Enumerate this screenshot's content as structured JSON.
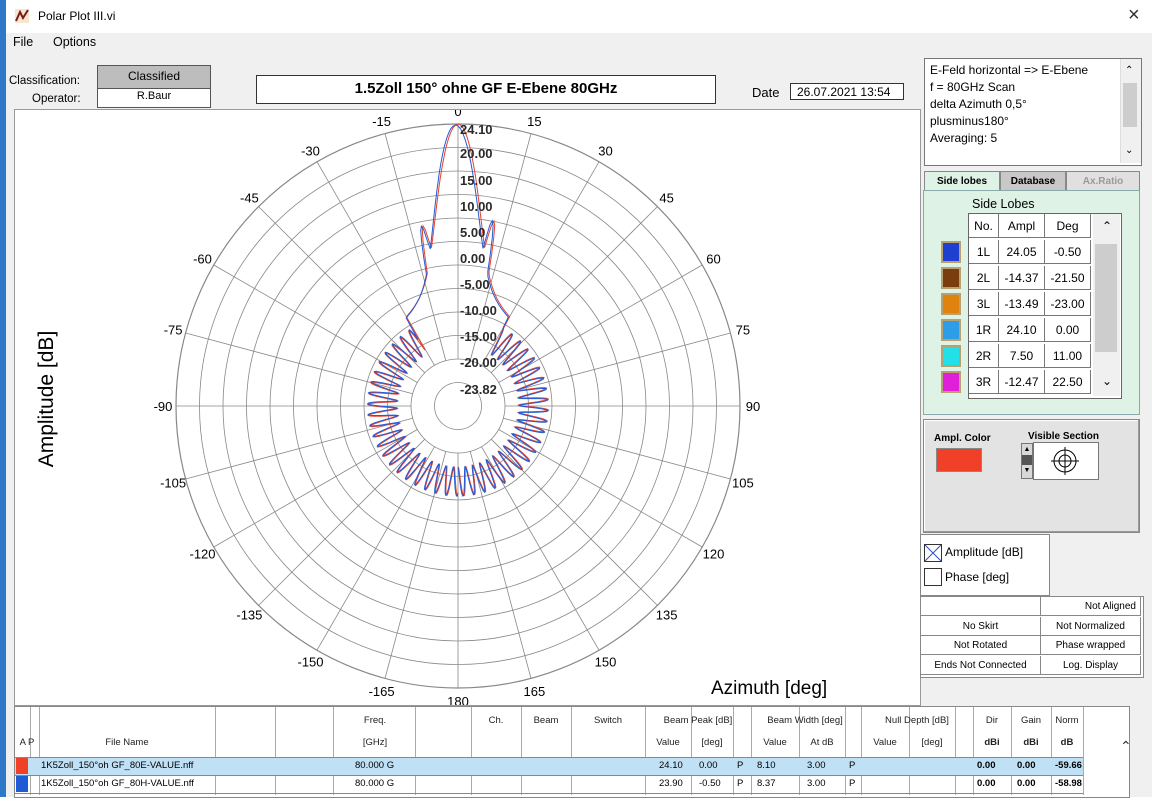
{
  "window": {
    "title": "Polar Plot III.vi",
    "close_glyph": "×"
  },
  "menu": [
    "File",
    "Options"
  ],
  "header": {
    "classification_label": "Classification:",
    "classification_value": "Classified",
    "operator_label": "Operator:",
    "operator_value": "R.Baur",
    "plot_title": "1.5Zoll 150° ohne GF E-Ebene 80GHz",
    "date_label": "Date",
    "date_value": "26.07.2021 13:54"
  },
  "plot": {
    "ylabel": "Amplitude [dB]",
    "xlabel": "Azimuth  [deg]",
    "angle_labels": [
      "0",
      "15",
      "30",
      "45",
      "60",
      "75",
      "90",
      "105",
      "120",
      "135",
      "150",
      "165",
      "180",
      "-165",
      "-150",
      "-135",
      "-120",
      "-105",
      "-90",
      "-75",
      "-60",
      "-45",
      "-30",
      "-15"
    ],
    "radial_labels": [
      "24.10",
      "20.00",
      "15.00",
      "10.00",
      "5.00",
      "0.00",
      "-5.00",
      "-10.00",
      "-15.00",
      "-20.00",
      "-23.82"
    ],
    "series_colors": [
      "#e8412c",
      "#1f5bd6"
    ]
  },
  "info_text": "E-Feld horizontal => E-Ebene\nf = 80GHz Scan\ndelta Azimuth 0,5°\nplusminus180°\nAveraging: 5",
  "tabs": [
    "Side lobes",
    "Database",
    "Ax.Ratio"
  ],
  "side_lobes": {
    "title": "Side Lobes",
    "headers": [
      "No.",
      "Ampl",
      "Deg"
    ],
    "rows": [
      {
        "no": "1L",
        "ampl": "24.05",
        "deg": "-0.50",
        "color": "#1f3fd0"
      },
      {
        "no": "2L",
        "ampl": "-14.37",
        "deg": "-21.50",
        "color": "#7a3e0e"
      },
      {
        "no": "3L",
        "ampl": "-13.49",
        "deg": "-23.00",
        "color": "#e0820e"
      },
      {
        "no": "1R",
        "ampl": "24.10",
        "deg": "0.00",
        "color": "#2c9de6"
      },
      {
        "no": "2R",
        "ampl": "7.50",
        "deg": "11.00",
        "color": "#22e0e8"
      },
      {
        "no": "3R",
        "ampl": "-12.47",
        "deg": "22.50",
        "color": "#e020d8"
      }
    ]
  },
  "ampl_panel": {
    "ampl_color_label": "Ampl. Color",
    "visible_section_label": "Visible Section",
    "ampl_color": "#f04028"
  },
  "legend": {
    "amplitude": "Amplitude [dB]",
    "phase": "Phase [deg]"
  },
  "status": [
    [
      "",
      "Not Aligned"
    ],
    [
      "No Skirt",
      "Not Normalized"
    ],
    [
      "Not Rotated",
      "Phase wrapped"
    ],
    [
      "Ends Not Connected",
      "Log. Display"
    ]
  ],
  "file_table": {
    "headers": {
      "ap": "A P",
      "file_name": "File Name",
      "freq": "Freq.",
      "freq_unit": "[GHz]",
      "ch": "Ch.",
      "beam": "Beam",
      "switch": "Switch",
      "beam_peak": "Beam Peak [dB]",
      "bp_value": "Value",
      "bp_deg": "[deg]",
      "beam_width": "Beam Width [deg]",
      "bw_value": "Value",
      "bw_atdb": "At dB",
      "null_depth": "Null Depth [dB]",
      "nd_value": "Value",
      "nd_deg": "[deg]",
      "dir": "Dir",
      "dir_unit": "dBi",
      "gain": "Gain",
      "gain_unit": "dBi",
      "norm": "Norm",
      "norm_unit": "dB"
    },
    "rows": [
      {
        "color": "#f04028",
        "file": "1K5Zoll_150°oh GF_80E-VALUE.nff",
        "freq": "80.000 G",
        "bp_value": "24.10",
        "bp_deg": "0.00",
        "p1": "P",
        "bw_value": "8.10",
        "bw_atdb": "3.00",
        "p2": "P",
        "dir": "0.00",
        "gain": "0.00",
        "norm": "-59.66"
      },
      {
        "color": "#1f5bd6",
        "file": "1K5Zoll_150°oh GF_80H-VALUE.nff",
        "freq": "80.000 G",
        "bp_value": "23.90",
        "bp_deg": "-0.50",
        "p1": "P",
        "bw_value": "8.37",
        "bw_atdb": "3.00",
        "p2": "P",
        "dir": "0.00",
        "gain": "0.00",
        "norm": "-58.98"
      }
    ]
  }
}
